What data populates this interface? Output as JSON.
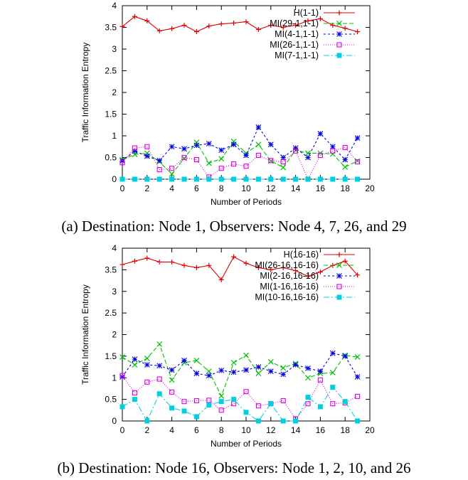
{
  "chart_data": [
    {
      "type": "line",
      "caption": "(a) Destination: Node 1, Observers: Node 4, 7, 26, and 29",
      "xlabel": "Number of Periods",
      "ylabel": "Traffic Information Entropy",
      "xlim": [
        0,
        20
      ],
      "ylim": [
        0,
        4
      ],
      "xticks": [
        "0",
        "2",
        "4",
        "6",
        "8",
        "10",
        "12",
        "14",
        "16",
        "18",
        "20"
      ],
      "yticks": [
        "0",
        "0.5",
        "1",
        "1.5",
        "2",
        "2.5",
        "3",
        "3.5",
        "4"
      ],
      "legend_position": "top-right",
      "grid": false,
      "x": [
        0,
        1,
        2,
        3,
        4,
        5,
        6,
        7,
        8,
        9,
        10,
        11,
        12,
        13,
        14,
        15,
        16,
        17,
        18,
        19
      ],
      "series": [
        {
          "name": "H(1-1)",
          "color": "#e00000",
          "dash": "",
          "marker": "plus",
          "values": [
            3.52,
            3.75,
            3.65,
            3.42,
            3.47,
            3.55,
            3.4,
            3.53,
            3.58,
            3.6,
            3.63,
            3.45,
            3.55,
            3.5,
            3.55,
            3.65,
            3.7,
            3.55,
            3.48,
            3.4
          ]
        },
        {
          "name": "MI(29-1,1-1)",
          "color": "#00c000",
          "dash": "6,3",
          "marker": "x",
          "values": [
            0.45,
            0.57,
            0.6,
            0.4,
            0.12,
            0.48,
            0.85,
            0.37,
            0.47,
            0.87,
            0.6,
            0.8,
            0.42,
            0.27,
            0.67,
            0.6,
            0.6,
            0.58,
            0.28,
            0.42
          ]
        },
        {
          "name": "MI(4-1,1-1)",
          "color": "#0000e0",
          "dash": "3,3",
          "marker": "star",
          "values": [
            0.42,
            0.65,
            0.53,
            0.43,
            0.75,
            0.7,
            0.78,
            0.82,
            0.67,
            0.8,
            0.55,
            1.2,
            0.8,
            0.5,
            0.72,
            0.5,
            1.05,
            0.75,
            0.45,
            0.95
          ]
        },
        {
          "name": "MI(26-1,1-1)",
          "color": "#e000e0",
          "dash": "1,2",
          "marker": "box",
          "values": [
            0.38,
            0.72,
            0.75,
            0.22,
            0.25,
            0.5,
            0.45,
            0.05,
            0.25,
            0.35,
            0.3,
            0.55,
            0.43,
            0.4,
            0.65,
            0.0,
            0.55,
            0.65,
            0.73,
            0.4
          ]
        },
        {
          "name": "MI(7-1,1-1)",
          "color": "#00d0e0",
          "dash": "8,3,2,3",
          "marker": "fbox",
          "values": [
            0,
            0,
            0,
            0,
            0,
            0,
            0,
            0,
            0,
            0,
            0,
            0,
            0,
            0,
            0,
            0,
            0,
            0,
            0,
            0
          ]
        }
      ]
    },
    {
      "type": "line",
      "caption": "(b) Destination: Node 16, Observers: Node 1, 2, 10, and 26",
      "xlabel": "Number of Periods",
      "ylabel": "Traffic Information Entropy",
      "xlim": [
        0,
        20
      ],
      "ylim": [
        0,
        4
      ],
      "xticks": [
        "0",
        "2",
        "4",
        "6",
        "8",
        "10",
        "12",
        "14",
        "16",
        "18",
        "20"
      ],
      "yticks": [
        "0",
        "0.5",
        "1",
        "1.5",
        "2",
        "2.5",
        "3",
        "3.5",
        "4"
      ],
      "legend_position": "top-right",
      "grid": false,
      "x": [
        0,
        1,
        2,
        3,
        4,
        5,
        6,
        7,
        8,
        9,
        10,
        11,
        12,
        13,
        14,
        15,
        16,
        17,
        18,
        19
      ],
      "series": [
        {
          "name": "H(16-16)",
          "color": "#e00000",
          "dash": "",
          "marker": "plus",
          "values": [
            3.62,
            3.7,
            3.77,
            3.68,
            3.68,
            3.6,
            3.55,
            3.6,
            3.27,
            3.8,
            3.65,
            3.55,
            3.5,
            3.55,
            3.48,
            3.35,
            3.45,
            3.6,
            3.7,
            3.38
          ]
        },
        {
          "name": "MI(26-16,16-16)",
          "color": "#00c000",
          "dash": "6,3",
          "marker": "x",
          "values": [
            1.48,
            1.3,
            1.45,
            1.78,
            0.95,
            1.35,
            1.4,
            1.15,
            0.58,
            1.35,
            1.52,
            1.1,
            1.37,
            1.23,
            1.33,
            1.0,
            1.1,
            1.12,
            1.52,
            1.48
          ]
        },
        {
          "name": "MI(2-16,16-16)",
          "color": "#0000e0",
          "dash": "3,3",
          "marker": "star",
          "values": [
            1.02,
            1.43,
            1.3,
            1.28,
            1.18,
            1.4,
            1.1,
            1.05,
            1.17,
            1.13,
            1.18,
            1.25,
            1.15,
            1.08,
            1.3,
            1.22,
            1.15,
            1.57,
            1.5,
            1.02
          ]
        },
        {
          "name": "MI(1-16,16-16)",
          "color": "#e000e0",
          "dash": "1,2",
          "marker": "box",
          "values": [
            1.05,
            0.65,
            0.9,
            0.97,
            0.67,
            0.45,
            0.47,
            0.48,
            0.25,
            0.4,
            0.68,
            0.35,
            0.4,
            0.47,
            0.05,
            0.4,
            0.95,
            0.4,
            0.42,
            0.57
          ]
        },
        {
          "name": "MI(10-16,16-16)",
          "color": "#00d0e0",
          "dash": "8,3,2,3",
          "marker": "fbox",
          "values": [
            0.33,
            0.5,
            0.0,
            0.63,
            0.3,
            0.23,
            0.1,
            0.37,
            0.45,
            0.5,
            0.2,
            0.0,
            0.4,
            0.0,
            0.0,
            0.55,
            0.33,
            0.78,
            0.45,
            0.0
          ]
        }
      ]
    }
  ]
}
